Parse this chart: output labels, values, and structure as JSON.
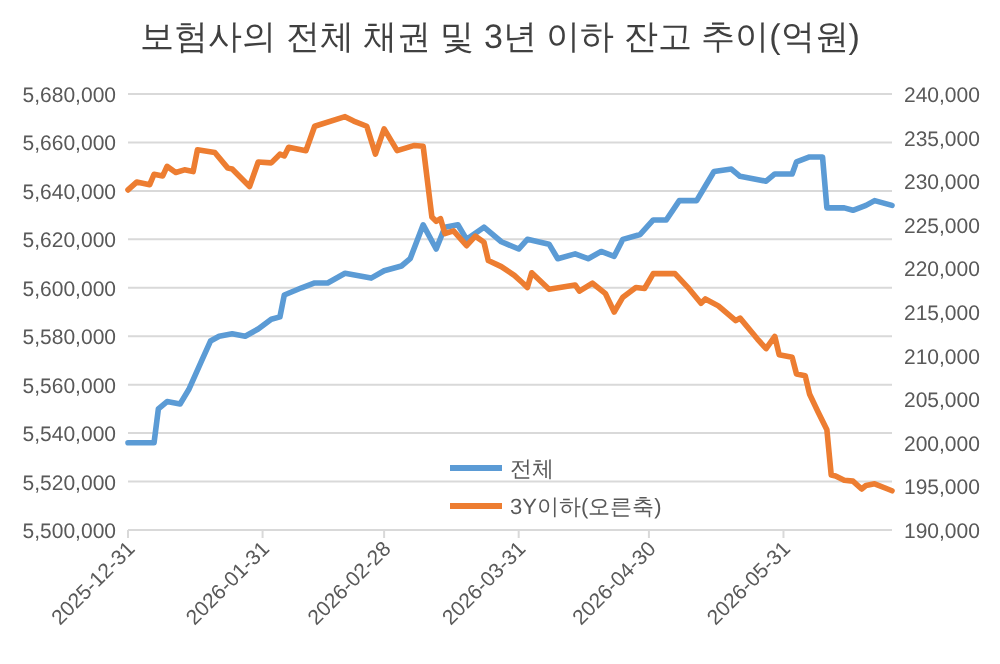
{
  "chart_data": {
    "type": "line",
    "title": "보험사의 전체 채권 및 3년 이하 잔고 추이(억원)",
    "xlim": [
      "2025-12-31",
      "2026-06-25"
    ],
    "xticks": [
      "2025-12-31",
      "2026-01-31",
      "2026-02-28",
      "2026-03-31",
      "2026-04-30",
      "2026-05-31"
    ],
    "ylim": [
      5500000,
      5680000
    ],
    "yticks": [
      {
        "value": 5500000,
        "label": "5,500,000"
      },
      {
        "value": 5520000,
        "label": "5,520,000"
      },
      {
        "value": 5540000,
        "label": "5,540,000"
      },
      {
        "value": 5560000,
        "label": "5,560,000"
      },
      {
        "value": 5580000,
        "label": "5,580,000"
      },
      {
        "value": 5600000,
        "label": "5,600,000"
      },
      {
        "value": 5620000,
        "label": "5,620,000"
      },
      {
        "value": 5640000,
        "label": "5,640,000"
      },
      {
        "value": 5660000,
        "label": "5,660,000"
      },
      {
        "value": 5680000,
        "label": "5,680,000"
      }
    ],
    "y2lim": [
      190000,
      240000
    ],
    "y2ticks": [
      {
        "value": 190000,
        "label": "190,000"
      },
      {
        "value": 195000,
        "label": "195,000"
      },
      {
        "value": 200000,
        "label": "200,000"
      },
      {
        "value": 205000,
        "label": "205,000"
      },
      {
        "value": 210000,
        "label": "210,000"
      },
      {
        "value": 215000,
        "label": "215,000"
      },
      {
        "value": 220000,
        "label": "220,000"
      },
      {
        "value": 225000,
        "label": "225,000"
      },
      {
        "value": 230000,
        "label": "230,000"
      },
      {
        "value": 235000,
        "label": "235,000"
      },
      {
        "value": 240000,
        "label": "240,000"
      }
    ],
    "grid": "y",
    "legend": "bottom",
    "series": [
      {
        "name": "전체",
        "color": "#5b9bd5",
        "x": [
          "2025-12-31",
          "2026-01-06",
          "2026-01-07",
          "2026-01-09",
          "2026-01-12",
          "2026-01-14",
          "2026-01-17",
          "2026-01-19",
          "2026-01-21",
          "2026-01-24",
          "2026-01-27",
          "2026-01-30",
          "2026-02-02",
          "2026-02-04",
          "2026-02-05",
          "2026-02-09",
          "2026-02-12",
          "2026-02-15",
          "2026-02-19",
          "2026-02-25",
          "2026-02-28",
          "2026-03-04",
          "2026-03-06",
          "2026-03-09",
          "2026-03-12",
          "2026-03-14",
          "2026-03-17",
          "2026-03-19",
          "2026-03-23",
          "2026-03-27",
          "2026-03-31",
          "2026-04-02",
          "2026-04-07",
          "2026-04-09",
          "2026-04-13",
          "2026-04-16",
          "2026-04-19",
          "2026-04-22",
          "2026-04-24",
          "2026-04-28",
          "2026-05-01",
          "2026-05-04",
          "2026-05-07",
          "2026-05-11",
          "2026-05-13",
          "2026-05-15",
          "2026-05-19",
          "2026-05-21",
          "2026-05-27",
          "2026-05-29",
          "2026-06-02",
          "2026-06-03",
          "2026-06-06",
          "2026-06-09",
          "2026-06-10",
          "2026-06-14",
          "2026-06-16",
          "2026-06-19",
          "2026-06-21",
          "2026-06-25"
        ],
        "values": [
          5536000,
          5536000,
          5550000,
          5553000,
          5552000,
          5558000,
          5570000,
          5578000,
          5580000,
          5581000,
          5580000,
          5583000,
          5587000,
          5588000,
          5597000,
          5600000,
          5602000,
          5602000,
          5606000,
          5604000,
          5607000,
          5609000,
          5612000,
          5626000,
          5616000,
          5625000,
          5626000,
          5620000,
          5625000,
          5619000,
          5616000,
          5620000,
          5618000,
          5612000,
          5614000,
          5612000,
          5615000,
          5613000,
          5620000,
          5622000,
          5628000,
          5628000,
          5636000,
          5636000,
          5642000,
          5648000,
          5649000,
          5646000,
          5644000,
          5647000,
          5647000,
          5652000,
          5654000,
          5654000,
          5633000,
          5633000,
          5632000,
          5634000,
          5636000,
          5634000
        ]
      },
      {
        "name": "3Y이하(오른축)",
        "color": "#ed7d31",
        "axis": "y2",
        "x": [
          "2025-12-31",
          "2026-01-02",
          "2026-01-05",
          "2026-01-06",
          "2026-01-08",
          "2026-01-09",
          "2026-01-11",
          "2026-01-13",
          "2026-01-15",
          "2026-01-16",
          "2026-01-20",
          "2026-01-23",
          "2026-01-24",
          "2026-01-28",
          "2026-01-30",
          "2026-02-02",
          "2026-02-04",
          "2026-02-05",
          "2026-02-06",
          "2026-02-10",
          "2026-02-12",
          "2026-02-19",
          "2026-02-21",
          "2026-02-24",
          "2026-02-26",
          "2026-02-28",
          "2026-03-03",
          "2026-03-07",
          "2026-03-09",
          "2026-03-11",
          "2026-03-12",
          "2026-03-13",
          "2026-03-14",
          "2026-03-16",
          "2026-03-19",
          "2026-03-21",
          "2026-03-23",
          "2026-03-24",
          "2026-03-27",
          "2026-03-30",
          "2026-04-01",
          "2026-04-02",
          "2026-04-03",
          "2026-04-07",
          "2026-04-13",
          "2026-04-14",
          "2026-04-17",
          "2026-04-20",
          "2026-04-22",
          "2026-04-24",
          "2026-04-27",
          "2026-04-29",
          "2026-05-01",
          "2026-05-06",
          "2026-05-09",
          "2026-05-12",
          "2026-05-13",
          "2026-05-16",
          "2026-05-20",
          "2026-05-21",
          "2026-05-25",
          "2026-05-27",
          "2026-05-29",
          "2026-05-30",
          "2026-06-02",
          "2026-06-03",
          "2026-06-05",
          "2026-06-06",
          "2026-06-08",
          "2026-06-10",
          "2026-06-11",
          "2026-06-12",
          "2026-06-14",
          "2026-06-16",
          "2026-06-18",
          "2026-06-19",
          "2026-06-21",
          "2026-06-24",
          "2026-06-25"
        ],
        "values": [
          229000,
          229900,
          229600,
          230800,
          230600,
          231700,
          231000,
          231300,
          231100,
          233600,
          233300,
          231500,
          231400,
          229400,
          232200,
          232100,
          233100,
          232900,
          233900,
          233500,
          236300,
          237400,
          236900,
          236300,
          233100,
          236000,
          233500,
          234100,
          234000,
          225900,
          225400,
          225700,
          224000,
          224300,
          222600,
          223700,
          223000,
          220900,
          220200,
          219200,
          218300,
          217800,
          219500,
          217600,
          218100,
          217400,
          218300,
          217100,
          215000,
          216700,
          217800,
          217700,
          219400,
          219400,
          217800,
          216000,
          216500,
          215700,
          214000,
          214300,
          211900,
          210800,
          212200,
          210100,
          209800,
          207900,
          207700,
          205600,
          203500,
          201500,
          196300,
          196200,
          195700,
          195600,
          194700,
          195100,
          195300,
          194700,
          194500
        ]
      }
    ]
  }
}
